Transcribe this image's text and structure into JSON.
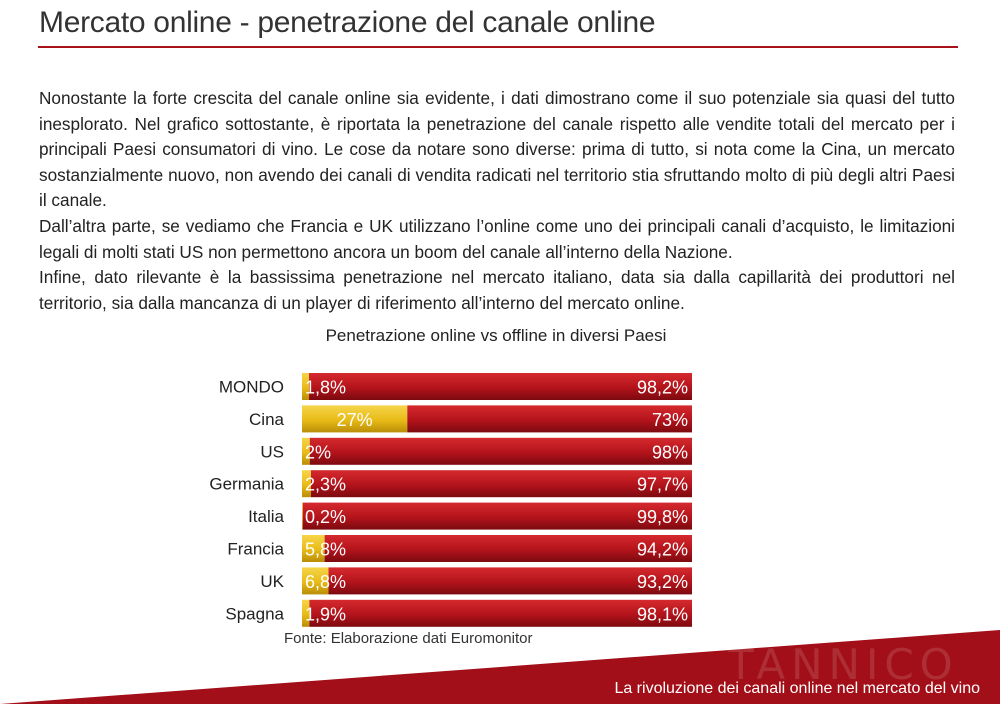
{
  "page": {
    "title": "Mercato online - penetrazione del canale online",
    "paragraphs": [
      "Nonostante la forte crescita del canale online sia evidente, i dati dimostrano come il suo potenziale sia quasi del tutto inesplorato. Nel grafico sottostante, è riportata la penetrazione del canale rispetto alle vendite totali del mercato per i principali Paesi consumatori di vino. Le cose da notare sono diverse: prima di tutto, si nota come la Cina, un mercato sostanzialmente nuovo, non avendo dei canali di vendita radicati nel territorio stia sfruttando molto di più degli altri Paesi il canale.",
      "Dall’altra parte, se vediamo che Francia e UK utilizzano l’online come uno dei principali canali d’acquisto, le limitazioni legali di molti stati US non permettono ancora un boom del canale all’interno della Nazione.",
      "Infine, dato rilevante è la bassissima penetrazione nel mercato italiano, data sia dalla capillarità dei produttori nel territorio, sia dalla mancanza di un player di riferimento all’interno del mercato online."
    ],
    "source": "Fonte: Elaborazione dati Euromonitor",
    "footer": "La rivoluzione dei canali online nel mercato del vino",
    "watermark": "TANNICO"
  },
  "colors": {
    "accent": "#a8121a",
    "online": "#e8bb17",
    "offline": "#b3131b"
  },
  "chart_data": {
    "type": "bar",
    "orientation": "horizontal",
    "stacked": true,
    "percent_stacked": true,
    "title": "Penetrazione online vs offline in diversi Paesi",
    "xlabel": "",
    "ylabel": "",
    "xlim": [
      0,
      100
    ],
    "grid": false,
    "legend": "none",
    "categories": [
      "MONDO",
      "Cina",
      "US",
      "Germania",
      "Italia",
      "Francia",
      "UK",
      "Spagna"
    ],
    "series": [
      {
        "values": [
          1.8,
          27,
          2,
          2.3,
          0.2,
          5.8,
          6.8,
          1.9
        ],
        "labels": [
          "1,8%",
          "27%",
          "2%",
          "2,3%",
          "0,2%",
          "5,8%",
          "6,8%",
          "1,9%"
        ]
      },
      {
        "values": [
          98.2,
          73,
          98,
          97.7,
          99.8,
          94.2,
          93.2,
          98.1
        ],
        "labels": [
          "98,2%",
          "73%",
          "98%",
          "97,7%",
          "99,8%",
          "94,2%",
          "93,2%",
          "98,1%"
        ]
      }
    ]
  }
}
